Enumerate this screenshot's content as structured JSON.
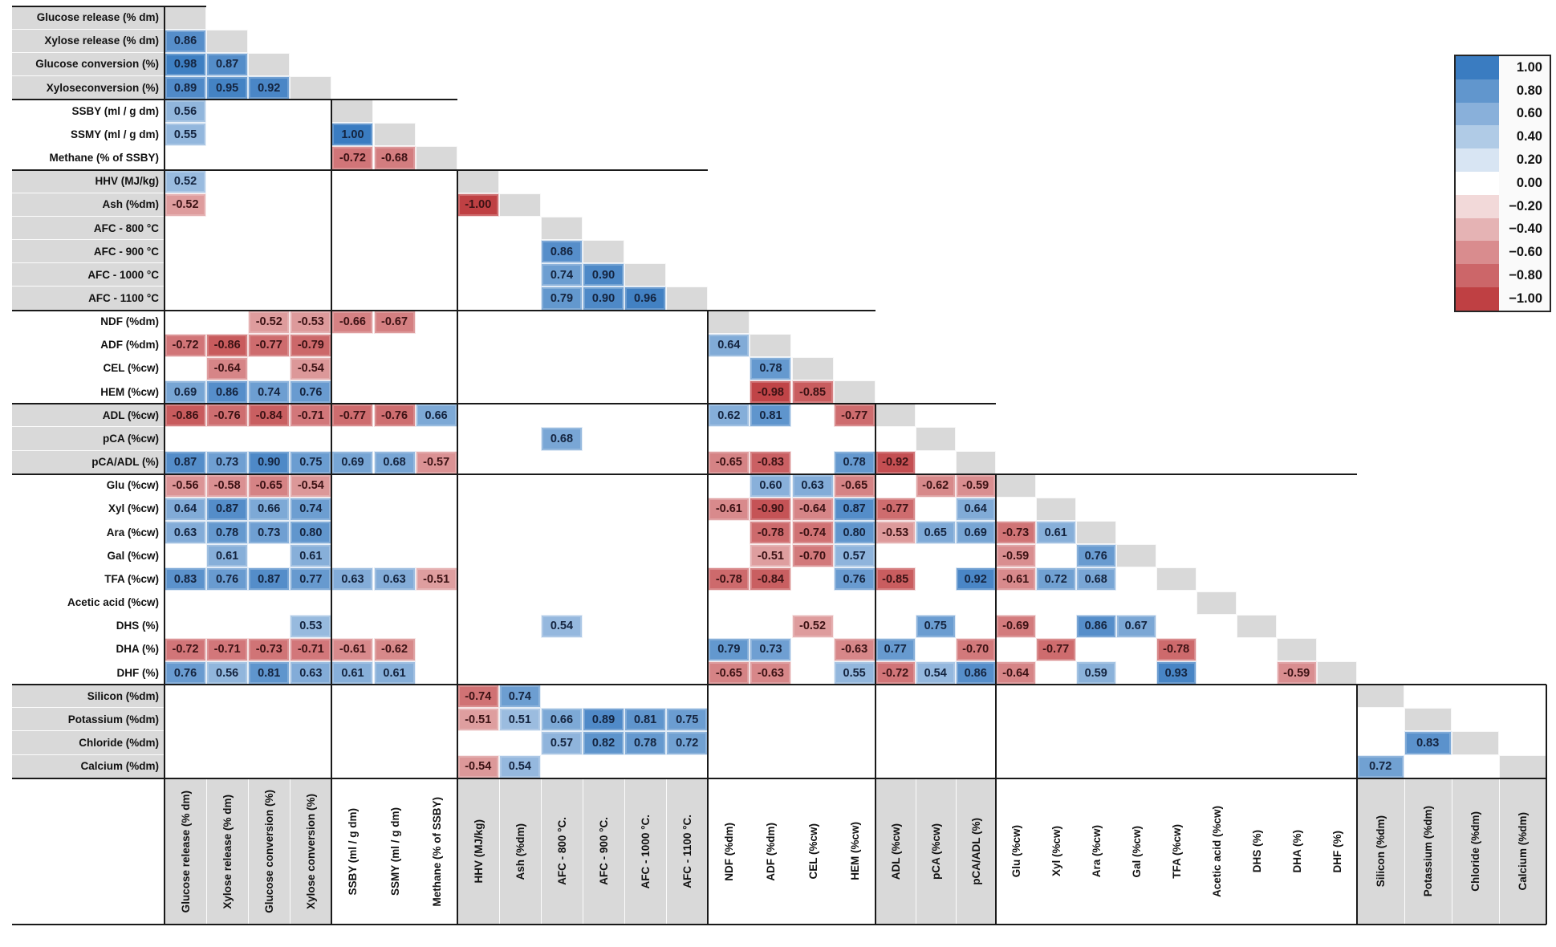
{
  "colors": {
    "positive_end": "#3a7cc1",
    "negative_end": "#bf4043",
    "diagonal_gray": "#d9d9d9",
    "label_band_gray": "#d9d9d9",
    "border_black": "#1a1a1a",
    "text_positive": "#14243f",
    "text_negative": "#3c1214"
  },
  "legend": {
    "ticks": [
      1.0,
      0.8,
      0.6,
      0.4,
      0.2,
      0.0,
      -0.2,
      -0.4,
      -0.6,
      -0.8,
      -1.0
    ]
  },
  "chart_data": {
    "type": "heatmap",
    "subtype": "lower-triangular correlation matrix",
    "value_range": [
      -1,
      1
    ],
    "legend_position": "top-right",
    "row_labels": [
      "Glucose release (% dm)",
      "Xylose release (% dm)",
      "Glucose conversion (%)",
      "Xyloseconversion (%)",
      "SSBY (ml / g dm)",
      "SSMY (ml / g dm)",
      "Methane (% of SSBY)",
      "HHV (MJ/kg)",
      "Ash (%dm)",
      "AFC - 800 °C",
      "AFC - 900 °C",
      "AFC - 1000 °C",
      "AFC - 1100 °C",
      "NDF (%dm)",
      "ADF (%dm)",
      "CEL (%cw)",
      "HEM (%cw)",
      "ADL (%cw)",
      "pCA (%cw)",
      "pCA/ADL (%)",
      "Glu (%cw)",
      "Xyl (%cw)",
      "Ara (%cw)",
      "Gal (%cw)",
      "TFA (%cw)",
      "Acetic acid (%cw)",
      "DHS (%)",
      "DHA (%)",
      "DHF (%)",
      "Silicon (%dm)",
      "Potassium (%dm)",
      "Chloride (%dm)",
      "Calcium (%dm)"
    ],
    "col_labels": [
      "Glucose release (% dm)",
      "Xylose release (% dm)",
      "Glucose conversion (%)",
      "Xylose conversion (%)",
      "SSBY (ml / g dm)",
      "SSMY (ml / g dm)",
      "Methane (% of SSBY)",
      "HHV (MJ/kg)",
      "Ash (%dm)",
      "AFC - 800 °C.",
      "AFC - 900 °C.",
      "AFC - 1000 °C.",
      "AFC - 1100 °C.",
      "NDF (%dm)",
      "ADF (%dm)",
      "CEL (%cw)",
      "HEM (%cw)",
      "ADL (%cw)",
      "pCA (%cw)",
      "pCA/ADL (%)",
      "Glu (%cw)",
      "Xyl (%cw)",
      "Ara (%cw)",
      "Gal (%cw)",
      "TFA (%cw)",
      "Acetic acid (%cw)",
      "DHS (%)",
      "DHA (%)",
      "DHF (%)",
      "Silicon (%dm)",
      "Potassium (%dm)",
      "Chloride (%dm)",
      "Calcium (%dm)"
    ],
    "groups": [
      {
        "start": 1,
        "end": 4,
        "shaded": true
      },
      {
        "start": 5,
        "end": 7,
        "shaded": false
      },
      {
        "start": 8,
        "end": 13,
        "shaded": true
      },
      {
        "start": 14,
        "end": 17,
        "shaded": false
      },
      {
        "start": 18,
        "end": 20,
        "shaded": true
      },
      {
        "start": 21,
        "end": 29,
        "shaded": false
      },
      {
        "start": 30,
        "end": 33,
        "shaded": true
      }
    ],
    "cells": [
      [
        2,
        1,
        0.86
      ],
      [
        3,
        1,
        0.98
      ],
      [
        3,
        2,
        0.87
      ],
      [
        4,
        1,
        0.89
      ],
      [
        4,
        2,
        0.95
      ],
      [
        4,
        3,
        0.92
      ],
      [
        5,
        1,
        0.56
      ],
      [
        6,
        1,
        0.55
      ],
      [
        6,
        5,
        1.0
      ],
      [
        7,
        5,
        -0.72
      ],
      [
        7,
        6,
        -0.68
      ],
      [
        8,
        1,
        0.52
      ],
      [
        9,
        1,
        -0.52
      ],
      [
        9,
        8,
        -1.0
      ],
      [
        11,
        10,
        0.86
      ],
      [
        12,
        10,
        0.74
      ],
      [
        12,
        11,
        0.9
      ],
      [
        13,
        10,
        0.79
      ],
      [
        13,
        11,
        0.9
      ],
      [
        13,
        12,
        0.96
      ],
      [
        14,
        3,
        -0.52
      ],
      [
        14,
        4,
        -0.53
      ],
      [
        14,
        5,
        -0.66
      ],
      [
        14,
        6,
        -0.67
      ],
      [
        15,
        1,
        -0.72
      ],
      [
        15,
        2,
        -0.86
      ],
      [
        15,
        3,
        -0.77
      ],
      [
        15,
        4,
        -0.79
      ],
      [
        15,
        14,
        0.64
      ],
      [
        16,
        2,
        -0.64
      ],
      [
        16,
        4,
        -0.54
      ],
      [
        16,
        15,
        0.78
      ],
      [
        17,
        1,
        0.69
      ],
      [
        17,
        2,
        0.86
      ],
      [
        17,
        3,
        0.74
      ],
      [
        17,
        4,
        0.76
      ],
      [
        17,
        15,
        -0.98
      ],
      [
        17,
        16,
        -0.85
      ],
      [
        18,
        1,
        -0.86
      ],
      [
        18,
        2,
        -0.76
      ],
      [
        18,
        3,
        -0.84
      ],
      [
        18,
        4,
        -0.71
      ],
      [
        18,
        5,
        -0.77
      ],
      [
        18,
        6,
        -0.76
      ],
      [
        18,
        7,
        0.66
      ],
      [
        18,
        14,
        0.62
      ],
      [
        18,
        15,
        0.81
      ],
      [
        18,
        17,
        -0.77
      ],
      [
        19,
        10,
        0.68
      ],
      [
        20,
        1,
        0.87
      ],
      [
        20,
        2,
        0.73
      ],
      [
        20,
        3,
        0.9
      ],
      [
        20,
        4,
        0.75
      ],
      [
        20,
        5,
        0.69
      ],
      [
        20,
        6,
        0.68
      ],
      [
        20,
        7,
        -0.57
      ],
      [
        20,
        14,
        -0.65
      ],
      [
        20,
        15,
        -0.83
      ],
      [
        20,
        17,
        0.78
      ],
      [
        20,
        18,
        -0.92
      ],
      [
        21,
        1,
        -0.56
      ],
      [
        21,
        2,
        -0.58
      ],
      [
        21,
        3,
        -0.65
      ],
      [
        21,
        4,
        -0.54
      ],
      [
        21,
        15,
        0.6
      ],
      [
        21,
        16,
        0.63
      ],
      [
        21,
        17,
        -0.65
      ],
      [
        21,
        19,
        -0.62
      ],
      [
        21,
        20,
        -0.59
      ],
      [
        22,
        1,
        0.64
      ],
      [
        22,
        2,
        0.87
      ],
      [
        22,
        3,
        0.66
      ],
      [
        22,
        4,
        0.74
      ],
      [
        22,
        14,
        -0.61
      ],
      [
        22,
        15,
        -0.9
      ],
      [
        22,
        16,
        -0.64
      ],
      [
        22,
        17,
        0.87
      ],
      [
        22,
        18,
        -0.77
      ],
      [
        22,
        20,
        0.64
      ],
      [
        23,
        1,
        0.63
      ],
      [
        23,
        2,
        0.78
      ],
      [
        23,
        3,
        0.73
      ],
      [
        23,
        4,
        0.8
      ],
      [
        23,
        15,
        -0.78
      ],
      [
        23,
        16,
        -0.74
      ],
      [
        23,
        17,
        0.8
      ],
      [
        23,
        18,
        -0.53
      ],
      [
        23,
        19,
        0.65
      ],
      [
        23,
        20,
        0.69
      ],
      [
        23,
        21,
        -0.73
      ],
      [
        23,
        22,
        0.61
      ],
      [
        24,
        2,
        0.61
      ],
      [
        24,
        4,
        0.61
      ],
      [
        24,
        15,
        -0.51
      ],
      [
        24,
        16,
        -0.7
      ],
      [
        24,
        17,
        0.57
      ],
      [
        24,
        21,
        -0.59
      ],
      [
        24,
        23,
        0.76
      ],
      [
        25,
        1,
        0.83
      ],
      [
        25,
        2,
        0.76
      ],
      [
        25,
        3,
        0.87
      ],
      [
        25,
        4,
        0.77
      ],
      [
        25,
        5,
        0.63
      ],
      [
        25,
        6,
        0.63
      ],
      [
        25,
        7,
        -0.51
      ],
      [
        25,
        14,
        -0.78
      ],
      [
        25,
        15,
        -0.84
      ],
      [
        25,
        17,
        0.76
      ],
      [
        25,
        18,
        -0.85
      ],
      [
        25,
        20,
        0.92
      ],
      [
        25,
        21,
        -0.61
      ],
      [
        25,
        22,
        0.72
      ],
      [
        25,
        23,
        0.68
      ],
      [
        27,
        4,
        0.53
      ],
      [
        27,
        10,
        0.54
      ],
      [
        27,
        16,
        -0.52
      ],
      [
        27,
        19,
        0.75
      ],
      [
        27,
        21,
        -0.69
      ],
      [
        27,
        23,
        0.86
      ],
      [
        27,
        24,
        0.67
      ],
      [
        28,
        1,
        -0.72
      ],
      [
        28,
        2,
        -0.71
      ],
      [
        28,
        3,
        -0.73
      ],
      [
        28,
        4,
        -0.71
      ],
      [
        28,
        5,
        -0.61
      ],
      [
        28,
        6,
        -0.62
      ],
      [
        28,
        14,
        0.79
      ],
      [
        28,
        15,
        0.73
      ],
      [
        28,
        17,
        -0.63
      ],
      [
        28,
        18,
        0.77
      ],
      [
        28,
        20,
        -0.7
      ],
      [
        28,
        22,
        -0.77
      ],
      [
        28,
        25,
        -0.78
      ],
      [
        29,
        1,
        0.76
      ],
      [
        29,
        2,
        0.56
      ],
      [
        29,
        3,
        0.81
      ],
      [
        29,
        4,
        0.63
      ],
      [
        29,
        5,
        0.61
      ],
      [
        29,
        6,
        0.61
      ],
      [
        29,
        14,
        -0.65
      ],
      [
        29,
        15,
        -0.63
      ],
      [
        29,
        17,
        0.55
      ],
      [
        29,
        18,
        -0.72
      ],
      [
        29,
        19,
        0.54
      ],
      [
        29,
        20,
        0.86
      ],
      [
        29,
        21,
        -0.64
      ],
      [
        29,
        23,
        0.59
      ],
      [
        29,
        25,
        0.93
      ],
      [
        29,
        28,
        -0.59
      ],
      [
        30,
        8,
        -0.74
      ],
      [
        30,
        9,
        0.74
      ],
      [
        31,
        8,
        -0.51
      ],
      [
        31,
        9,
        0.51
      ],
      [
        31,
        10,
        0.66
      ],
      [
        31,
        11,
        0.89
      ],
      [
        31,
        12,
        0.81
      ],
      [
        31,
        13,
        0.75
      ],
      [
        32,
        10,
        0.57
      ],
      [
        32,
        11,
        0.82
      ],
      [
        32,
        12,
        0.78
      ],
      [
        32,
        13,
        0.72
      ],
      [
        32,
        31,
        0.83
      ],
      [
        33,
        8,
        -0.54
      ],
      [
        33,
        9,
        0.54
      ],
      [
        33,
        30,
        0.72
      ]
    ]
  }
}
